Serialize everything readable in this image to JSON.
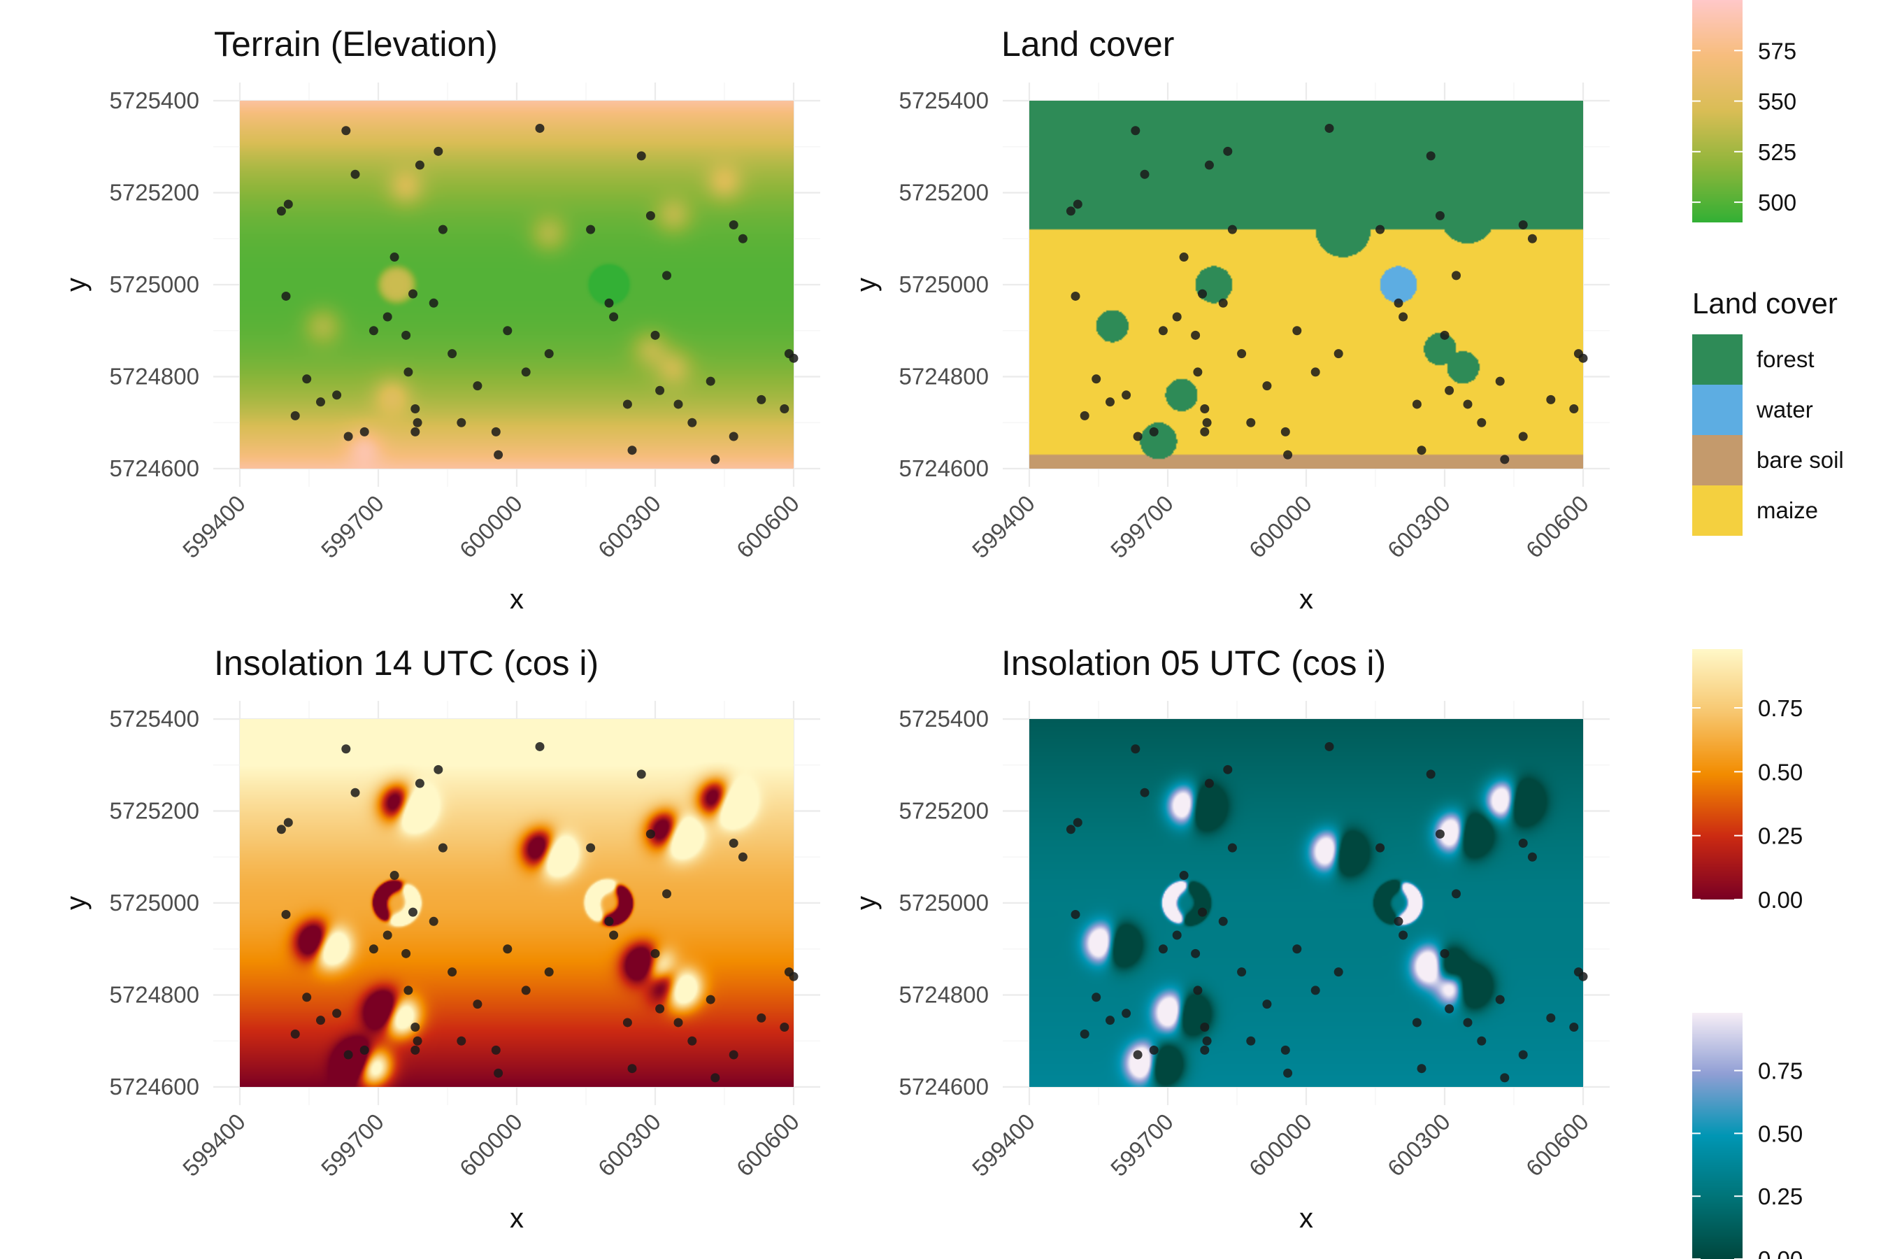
{
  "chart_data": [
    {
      "type": "heatmap",
      "title": "Terrain (Elevation)",
      "xlabel": "x",
      "ylabel": "y",
      "xlim": [
        599400,
        600600
      ],
      "ylim": [
        5724600,
        5725400
      ],
      "x_ticks": [
        "599400",
        "599700",
        "600000",
        "600300",
        "600600"
      ],
      "y_ticks": [
        "5725400",
        "5725200",
        "5725000",
        "5724800",
        "5724600"
      ],
      "layer": "elevation",
      "grid": true
    },
    {
      "type": "heatmap",
      "title": "Land cover",
      "xlabel": "x",
      "ylabel": "y",
      "xlim": [
        599400,
        600600
      ],
      "ylim": [
        5724600,
        5725400
      ],
      "x_ticks": [
        "599400",
        "599700",
        "600000",
        "600300",
        "600600"
      ],
      "y_ticks": [
        "5725400",
        "5725200",
        "5725000",
        "5724800",
        "5724600"
      ],
      "layer": "landcover",
      "grid": true
    },
    {
      "type": "heatmap",
      "title": "Insolation 14 UTC (cos i)",
      "xlabel": "x",
      "ylabel": "y",
      "xlim": [
        599400,
        600600
      ],
      "ylim": [
        5724600,
        5725400
      ],
      "x_ticks": [
        "599400",
        "599700",
        "600000",
        "600300",
        "600600"
      ],
      "y_ticks": [
        "5725400",
        "5725200",
        "5725000",
        "5724800",
        "5724600"
      ],
      "layer": "insolation14",
      "grid": true
    },
    {
      "type": "heatmap",
      "title": "Insolation 05 UTC (cos i)",
      "xlabel": "x",
      "ylabel": "y",
      "xlim": [
        599400,
        600600
      ],
      "ylim": [
        5724600,
        5725400
      ],
      "x_ticks": [
        "599400",
        "599700",
        "600000",
        "600300",
        "600600"
      ],
      "y_ticks": [
        "5725400",
        "5725200",
        "5725000",
        "5724800",
        "5724600"
      ],
      "layer": "insolation05",
      "grid": true
    }
  ],
  "legends": {
    "elevation": {
      "labels": [
        "575",
        "550",
        "525",
        "500"
      ],
      "values": [
        575,
        550,
        525,
        500
      ],
      "range": [
        490,
        600
      ],
      "colors": [
        "#33b035",
        "#8db53a",
        "#d9bd55",
        "#f7bd7d",
        "#ffc8c8"
      ]
    },
    "landcover": {
      "title": "Land cover",
      "items": [
        {
          "label": "forest",
          "color": "#2e8b57"
        },
        {
          "label": "water",
          "color": "#5dade2"
        },
        {
          "label": "bare soil",
          "color": "#c49a6c"
        },
        {
          "label": "maize",
          "color": "#f4d03f"
        }
      ]
    },
    "insolation14": {
      "labels": [
        "0.75",
        "0.50",
        "0.25",
        "0.00"
      ],
      "values": [
        0.75,
        0.5,
        0.25,
        0.0
      ],
      "range": [
        0,
        0.98
      ],
      "colors": [
        "#7a0023",
        "#cc2a12",
        "#f28c00",
        "#f7c770",
        "#fff8c8"
      ]
    },
    "insolation05": {
      "labels": [
        "0.75",
        "0.50",
        "0.25",
        "0.00"
      ],
      "values": [
        0.75,
        0.5,
        0.25,
        0.0
      ],
      "range": [
        0,
        0.98
      ],
      "colors": [
        "#00473e",
        "#007478",
        "#0096b4",
        "#8f9ed4",
        "#f6eef6"
      ]
    }
  },
  "terrain_features": {
    "hills": [
      {
        "x": 599740,
        "y": 5725000,
        "r": 40,
        "dz": 40
      },
      {
        "x": 600200,
        "y": 5725000,
        "r": 40,
        "dz": -40
      }
    ],
    "bumps": [
      [
        599580,
        5724910
      ],
      [
        599760,
        5725210
      ],
      [
        600070,
        5725110
      ],
      [
        600340,
        5725150
      ],
      [
        600450,
        5725220
      ],
      [
        600290,
        5724860
      ],
      [
        600340,
        5724820
      ],
      [
        599730,
        5724760
      ],
      [
        599670,
        5724650
      ]
    ]
  },
  "landcover_features": {
    "forest_boundary_y": 5725120,
    "bare_soil_boundary_y": 5724630,
    "forest_patches": [
      [
        599580,
        5724910,
        35
      ],
      [
        599800,
        5725000,
        40
      ],
      [
        599730,
        5724760,
        35
      ],
      [
        599680,
        5724660,
        40
      ],
      [
        600290,
        5724860,
        35
      ],
      [
        600340,
        5724820,
        35
      ],
      [
        600080,
        5725120,
        60
      ],
      [
        600350,
        5725150,
        60
      ]
    ],
    "water_patch": [
      600200,
      5725000,
      40
    ]
  },
  "sample_points": [
    [
      599505,
      5725175
    ],
    [
      599500,
      5724975
    ],
    [
      599545,
      5724795
    ],
    [
      599520,
      5724715
    ],
    [
      599575,
      5724745
    ],
    [
      599630,
      5725335
    ],
    [
      599650,
      5725240
    ],
    [
      599610,
      5724760
    ],
    [
      599635,
      5724670
    ],
    [
      599670,
      5724680
    ],
    [
      599690,
      5724900
    ],
    [
      599720,
      5724930
    ],
    [
      599735,
      5725060
    ],
    [
      599775,
      5724980
    ],
    [
      599790,
      5725260
    ],
    [
      599830,
      5725290
    ],
    [
      599840,
      5725120
    ],
    [
      599820,
      5724960
    ],
    [
      599760,
      5724890
    ],
    [
      599765,
      5724810
    ],
    [
      599780,
      5724730
    ],
    [
      599785,
      5724700
    ],
    [
      599780,
      5724680
    ],
    [
      599860,
      5724850
    ],
    [
      599880,
      5724700
    ],
    [
      599915,
      5724780
    ],
    [
      599955,
      5724680
    ],
    [
      599960,
      5724630
    ],
    [
      599980,
      5724900
    ],
    [
      600050,
      5725340
    ],
    [
      600020,
      5724810
    ],
    [
      600070,
      5724850
    ],
    [
      600160,
      5725120
    ],
    [
      600200,
      5724960
    ],
    [
      600210,
      5724930
    ],
    [
      600240,
      5724740
    ],
    [
      600250,
      5724640
    ],
    [
      600270,
      5725280
    ],
    [
      600290,
      5725150
    ],
    [
      600325,
      5725020
    ],
    [
      600300,
      5724890
    ],
    [
      600310,
      5724770
    ],
    [
      600350,
      5724740
    ],
    [
      600420,
      5724790
    ],
    [
      600380,
      5724700
    ],
    [
      600430,
      5724620
    ],
    [
      600470,
      5725130
    ],
    [
      600490,
      5725100
    ],
    [
      600470,
      5724670
    ],
    [
      600530,
      5724750
    ],
    [
      600590,
      5724850
    ],
    [
      600580,
      5724730
    ],
    [
      600600,
      5724840
    ],
    [
      599490,
      5725160
    ]
  ]
}
